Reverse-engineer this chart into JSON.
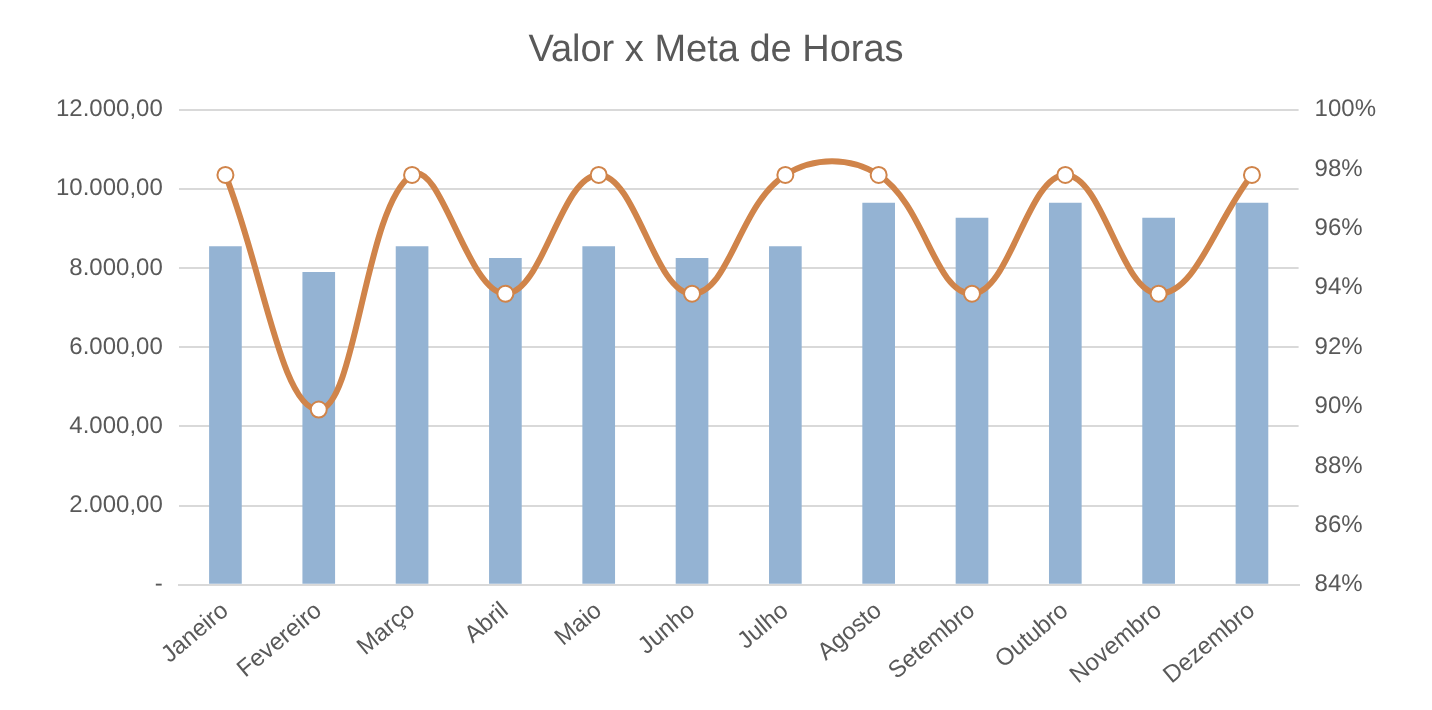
{
  "chart_data": {
    "type": "bar",
    "title": "Valor x Meta de Horas",
    "categories": [
      "Janeiro",
      "Fevereiro",
      "Março",
      "Abril",
      "Maio",
      "Junho",
      "Julho",
      "Agosto",
      "Setembro",
      "Outubro",
      "Novembro",
      "Dezembro"
    ],
    "series": [
      {
        "color": "#94b3d3",
        "values": [
          8550,
          7900,
          8550,
          8250,
          8550,
          8250,
          8550,
          9650,
          9270,
          9650,
          9270,
          9650
        ]
      },
      {
        "type": "line",
        "axis": "y2",
        "color": "#d0844a",
        "marker": "circle",
        "values": [
          97.8,
          89.9,
          97.8,
          93.8,
          97.8,
          93.8,
          97.8,
          97.8,
          93.8,
          97.8,
          93.8,
          97.8
        ]
      }
    ],
    "ylim": [
      0,
      12000
    ],
    "yticks": [
      {
        "value": 0,
        "label": "-"
      },
      {
        "value": 2000,
        "label": "2.000,00"
      },
      {
        "value": 4000,
        "label": "4.000,00"
      },
      {
        "value": 6000,
        "label": "6.000,00"
      },
      {
        "value": 8000,
        "label": "8.000,00"
      },
      {
        "value": 10000,
        "label": "10.000,00"
      },
      {
        "value": 12000,
        "label": "12.000,00"
      }
    ],
    "y2lim": [
      84,
      100
    ],
    "y2ticks": [
      {
        "value": 84,
        "label": "84%"
      },
      {
        "value": 86,
        "label": "86%"
      },
      {
        "value": 88,
        "label": "88%"
      },
      {
        "value": 90,
        "label": "90%"
      },
      {
        "value": 92,
        "label": "92%"
      },
      {
        "value": 94,
        "label": "94%"
      },
      {
        "value": 96,
        "label": "96%"
      },
      {
        "value": 98,
        "label": "98%"
      },
      {
        "value": 100,
        "label": "100%"
      }
    ],
    "grid": "y",
    "legend": false
  }
}
